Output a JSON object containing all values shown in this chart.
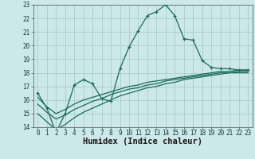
{
  "title": "",
  "xlabel": "Humidex (Indice chaleur)",
  "bg_color": "#cce8e8",
  "grid_color": "#aacece",
  "line_color": "#1a6b5a",
  "x_values": [
    0,
    1,
    2,
    3,
    4,
    5,
    6,
    7,
    8,
    9,
    10,
    11,
    12,
    13,
    14,
    15,
    16,
    17,
    18,
    19,
    20,
    21,
    22,
    23
  ],
  "main_y": [
    16.5,
    15.4,
    13.6,
    15.0,
    17.1,
    17.5,
    17.2,
    16.1,
    15.9,
    18.3,
    19.9,
    21.1,
    22.2,
    22.5,
    23.0,
    22.2,
    20.5,
    20.4,
    18.9,
    18.4,
    18.3,
    18.3,
    18.2,
    18.2
  ],
  "line2_y": [
    16.2,
    15.5,
    15.0,
    15.3,
    15.7,
    16.0,
    16.2,
    16.4,
    16.6,
    16.8,
    17.0,
    17.1,
    17.3,
    17.4,
    17.5,
    17.6,
    17.7,
    17.8,
    17.9,
    18.0,
    18.1,
    18.1,
    18.2,
    18.2
  ],
  "line3_y": [
    15.7,
    15.1,
    14.6,
    14.9,
    15.3,
    15.6,
    15.9,
    16.1,
    16.4,
    16.6,
    16.8,
    16.9,
    17.1,
    17.2,
    17.4,
    17.5,
    17.6,
    17.7,
    17.8,
    17.9,
    18.0,
    18.0,
    18.1,
    18.1
  ],
  "line4_y": [
    15.0,
    14.4,
    13.8,
    14.2,
    14.7,
    15.1,
    15.4,
    15.7,
    16.0,
    16.3,
    16.5,
    16.7,
    16.9,
    17.0,
    17.2,
    17.3,
    17.5,
    17.6,
    17.7,
    17.8,
    17.9,
    18.0,
    18.0,
    18.0
  ],
  "ylim": [
    14,
    23
  ],
  "xlim": [
    -0.5,
    23.5
  ],
  "yticks": [
    14,
    15,
    16,
    17,
    18,
    19,
    20,
    21,
    22,
    23
  ],
  "xticks": [
    0,
    1,
    2,
    3,
    4,
    5,
    6,
    7,
    8,
    9,
    10,
    11,
    12,
    13,
    14,
    15,
    16,
    17,
    18,
    19,
    20,
    21,
    22,
    23
  ],
  "tick_fontsize": 5.5,
  "xlabel_fontsize": 7.5,
  "marker": "+"
}
